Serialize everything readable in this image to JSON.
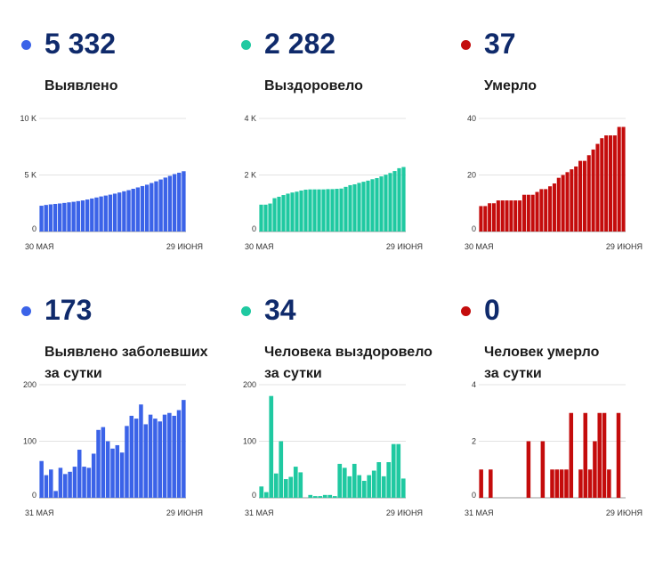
{
  "panels": [
    {
      "id": "cases-total",
      "color": "#3b63e8",
      "value": "5 332",
      "label_lines": [
        "Выявлено"
      ],
      "chart_data": {
        "type": "bar",
        "ylim": [
          0,
          10000
        ],
        "yticks": [
          0,
          5000,
          10000
        ],
        "ytick_labels": [
          "0",
          "5 K",
          "10 K"
        ],
        "x_start_label": "30 МАЯ",
        "x_end_label": "29 ИЮНЯ",
        "values": [
          2280,
          2350,
          2400,
          2440,
          2480,
          2530,
          2580,
          2630,
          2690,
          2750,
          2830,
          2920,
          3010,
          3100,
          3180,
          3260,
          3350,
          3450,
          3560,
          3660,
          3780,
          3900,
          4020,
          4140,
          4290,
          4440,
          4600,
          4770,
          4920,
          5080,
          5200,
          5332
        ]
      }
    },
    {
      "id": "recovered-total",
      "color": "#1fc9a1",
      "value": "2 282",
      "label_lines": [
        "Выздоровело"
      ],
      "chart_data": {
        "type": "bar",
        "ylim": [
          0,
          4000
        ],
        "yticks": [
          0,
          2000,
          4000
        ],
        "ytick_labels": [
          "0",
          "2 K",
          "4 K"
        ],
        "x_start_label": "30 МАЯ",
        "x_end_label": "29 ИЮНЯ",
        "values": [
          950,
          950,
          990,
          1180,
          1230,
          1290,
          1340,
          1380,
          1410,
          1450,
          1480,
          1490,
          1490,
          1490,
          1490,
          1500,
          1500,
          1510,
          1520,
          1580,
          1640,
          1670,
          1720,
          1760,
          1800,
          1850,
          1890,
          1950,
          2010,
          2070,
          2140,
          2240,
          2282
        ]
      }
    },
    {
      "id": "deaths-total",
      "color": "#c40c0c",
      "value": "37",
      "label_lines": [
        "Умерло"
      ],
      "chart_data": {
        "type": "bar",
        "ylim": [
          0,
          40
        ],
        "yticks": [
          0,
          20,
          40
        ],
        "ytick_labels": [
          "0",
          "20",
          "40"
        ],
        "x_start_label": "30 МАЯ",
        "x_end_label": "29 ИЮНЯ",
        "values": [
          9,
          9,
          10,
          10,
          11,
          11,
          11,
          11,
          11,
          11,
          13,
          13,
          13,
          14,
          15,
          15,
          16,
          17,
          19,
          20,
          21,
          22,
          23,
          25,
          25,
          27,
          29,
          31,
          33,
          34,
          34,
          34,
          37,
          37
        ]
      }
    },
    {
      "id": "cases-daily",
      "color": "#3b63e8",
      "value": "173",
      "label_lines": [
        "Выявлено заболевших",
        "за сутки"
      ],
      "chart_data": {
        "type": "bar",
        "ylim": [
          0,
          200
        ],
        "yticks": [
          0,
          100,
          200
        ],
        "ytick_labels": [
          "0",
          "100",
          "200"
        ],
        "x_start_label": "31 МАЯ",
        "x_end_label": "29 ИЮНЯ",
        "values": [
          65,
          40,
          50,
          12,
          53,
          42,
          46,
          55,
          85,
          55,
          53,
          78,
          120,
          125,
          100,
          87,
          93,
          80,
          127,
          145,
          140,
          165,
          130,
          147,
          140,
          135,
          147,
          150,
          145,
          155,
          173
        ]
      }
    },
    {
      "id": "recovered-daily",
      "color": "#1fc9a1",
      "value": "34",
      "label_lines": [
        "Человека выздоровело",
        "за сутки"
      ],
      "chart_data": {
        "type": "bar",
        "ylim": [
          0,
          200
        ],
        "yticks": [
          0,
          100,
          200
        ],
        "ytick_labels": [
          "0",
          "100",
          "200"
        ],
        "x_start_label": "31 МАЯ",
        "x_end_label": "29 ИЮНЯ",
        "values": [
          20,
          10,
          180,
          43,
          100,
          33,
          37,
          55,
          45,
          0,
          5,
          3,
          3,
          5,
          5,
          3,
          60,
          53,
          38,
          60,
          40,
          30,
          40,
          48,
          63,
          38,
          63,
          95,
          95,
          34
        ]
      }
    },
    {
      "id": "deaths-daily",
      "color": "#c40c0c",
      "value": "0",
      "label_lines": [
        "Человек умерло",
        "за сутки"
      ],
      "chart_data": {
        "type": "bar",
        "ylim": [
          0,
          4
        ],
        "yticks": [
          0,
          2,
          4
        ],
        "ytick_labels": [
          "0",
          "2",
          "4"
        ],
        "x_start_label": "31 МАЯ",
        "x_end_label": "29 ИЮНЯ",
        "values": [
          1,
          0,
          1,
          0,
          0,
          0,
          0,
          0,
          0,
          0,
          2,
          0,
          0,
          2,
          0,
          1,
          1,
          1,
          1,
          3,
          0,
          1,
          3,
          1,
          2,
          3,
          3,
          1,
          0,
          3,
          0
        ]
      }
    }
  ]
}
